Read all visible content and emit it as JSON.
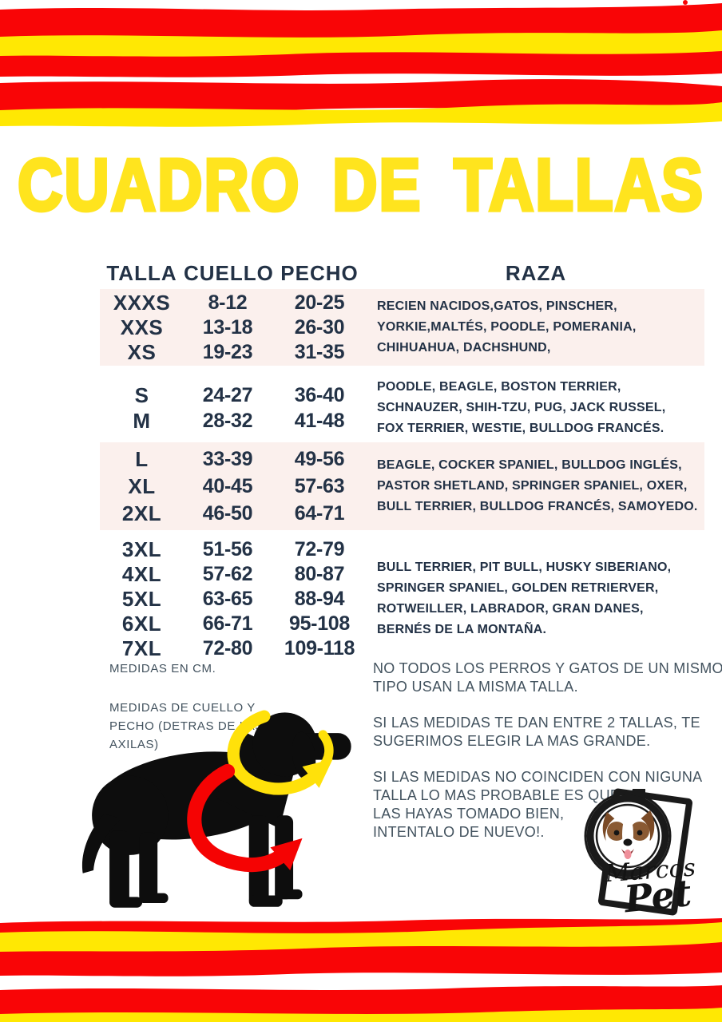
{
  "title": "CUADRO DE TALLAS",
  "colors": {
    "red": "#F90506",
    "yellow": "#FFE803",
    "title_yellow": "#FFE41E",
    "navy": "#233246",
    "note_gray": "#42525E",
    "pink_row": "#FBF0ED",
    "dog_black": "#0D0D0D",
    "arrow_yellow": "#FFE10A",
    "arrow_red": "#F50303"
  },
  "table": {
    "headers": [
      "TALLA",
      "CUELLO",
      "PECHO",
      "RAZA"
    ],
    "groups": [
      {
        "highlight": true,
        "rows": [
          [
            "XXXS",
            "8-12",
            "20-25"
          ],
          [
            "XXS",
            "13-18",
            "26-30"
          ],
          [
            "XS",
            "19-23",
            "31-35"
          ]
        ],
        "breeds": [
          "RECIEN NACIDOS,GATOS, PINSCHER,",
          "YORKIE,MALTÉS, POODLE, POMERANIA,",
          "CHIHUAHUA, DACHSHUND,"
        ]
      },
      {
        "highlight": false,
        "rows": [
          [
            "S",
            "24-27",
            "36-40"
          ],
          [
            "M",
            "28-32",
            "41-48"
          ]
        ],
        "breeds": [
          "POODLE, BEAGLE, BOSTON TERRIER,",
          "SCHNAUZER, SHIH-TZU, PUG, JACK RUSSEL,",
          "FOX TERRIER, WESTIE, BULLDOG FRANCÉS."
        ]
      },
      {
        "highlight": true,
        "rows": [
          [
            "L",
            "33-39",
            "49-56"
          ],
          [
            "XL",
            "40-45",
            "57-63"
          ],
          [
            "2XL",
            "46-50",
            "64-71"
          ]
        ],
        "breeds": [
          "BEAGLE, COCKER SPANIEL, BULLDOG INGLÉS,",
          "PASTOR SHETLAND, SPRINGER SPANIEL, OXER,",
          "BULL TERRIER, BULLDOG FRANCÉS, SAMOYEDO."
        ]
      },
      {
        "highlight": false,
        "rows": [
          [
            "3XL",
            "51-56",
            "72-79"
          ],
          [
            "4XL",
            "57-62",
            "80-87"
          ],
          [
            "5XL",
            "63-65",
            "88-94"
          ],
          [
            "6XL",
            "66-71",
            "95-108"
          ],
          [
            "7XL",
            "72-80",
            "109-118"
          ]
        ],
        "breeds": [
          "BULL TERRIER, PIT BULL, HUSKY SIBERIANO,",
          "SPRINGER SPANIEL, GOLDEN RETRIERVER,",
          "ROTWEILLER, LABRADOR, GRAN DANES,",
          "BERNÉS DE LA MONTAÑA."
        ]
      }
    ]
  },
  "notes_left": {
    "units": [
      "MEDIDAS EN CM."
    ],
    "how_to": [
      "MEDIDAS DE CUELLO Y",
      "PECHO (DETRAS DE LAS",
      "AXILAS)"
    ]
  },
  "notes_right": {
    "paragraphs": [
      [
        "NO TODOS LOS PERROS Y GATOS DE UN MISMO",
        "TIPO USAN LA MISMA TALLA."
      ],
      [
        "SI LAS MEDIDAS TE DAN ENTRE 2 TALLAS, TE",
        "SUGERIMOS ELEGIR LA MAS GRANDE."
      ],
      [
        "SI LAS MEDIDAS NO COINCIDEN CON NIGUNA",
        "TALLA LO MAS PROBABLE ES QUE NO",
        "LAS HAYAS TOMADO BIEN,",
        "INTENTALO DE NUEVO!."
      ]
    ]
  },
  "logo": {
    "line1": "Marcos",
    "line2": "Pet"
  }
}
